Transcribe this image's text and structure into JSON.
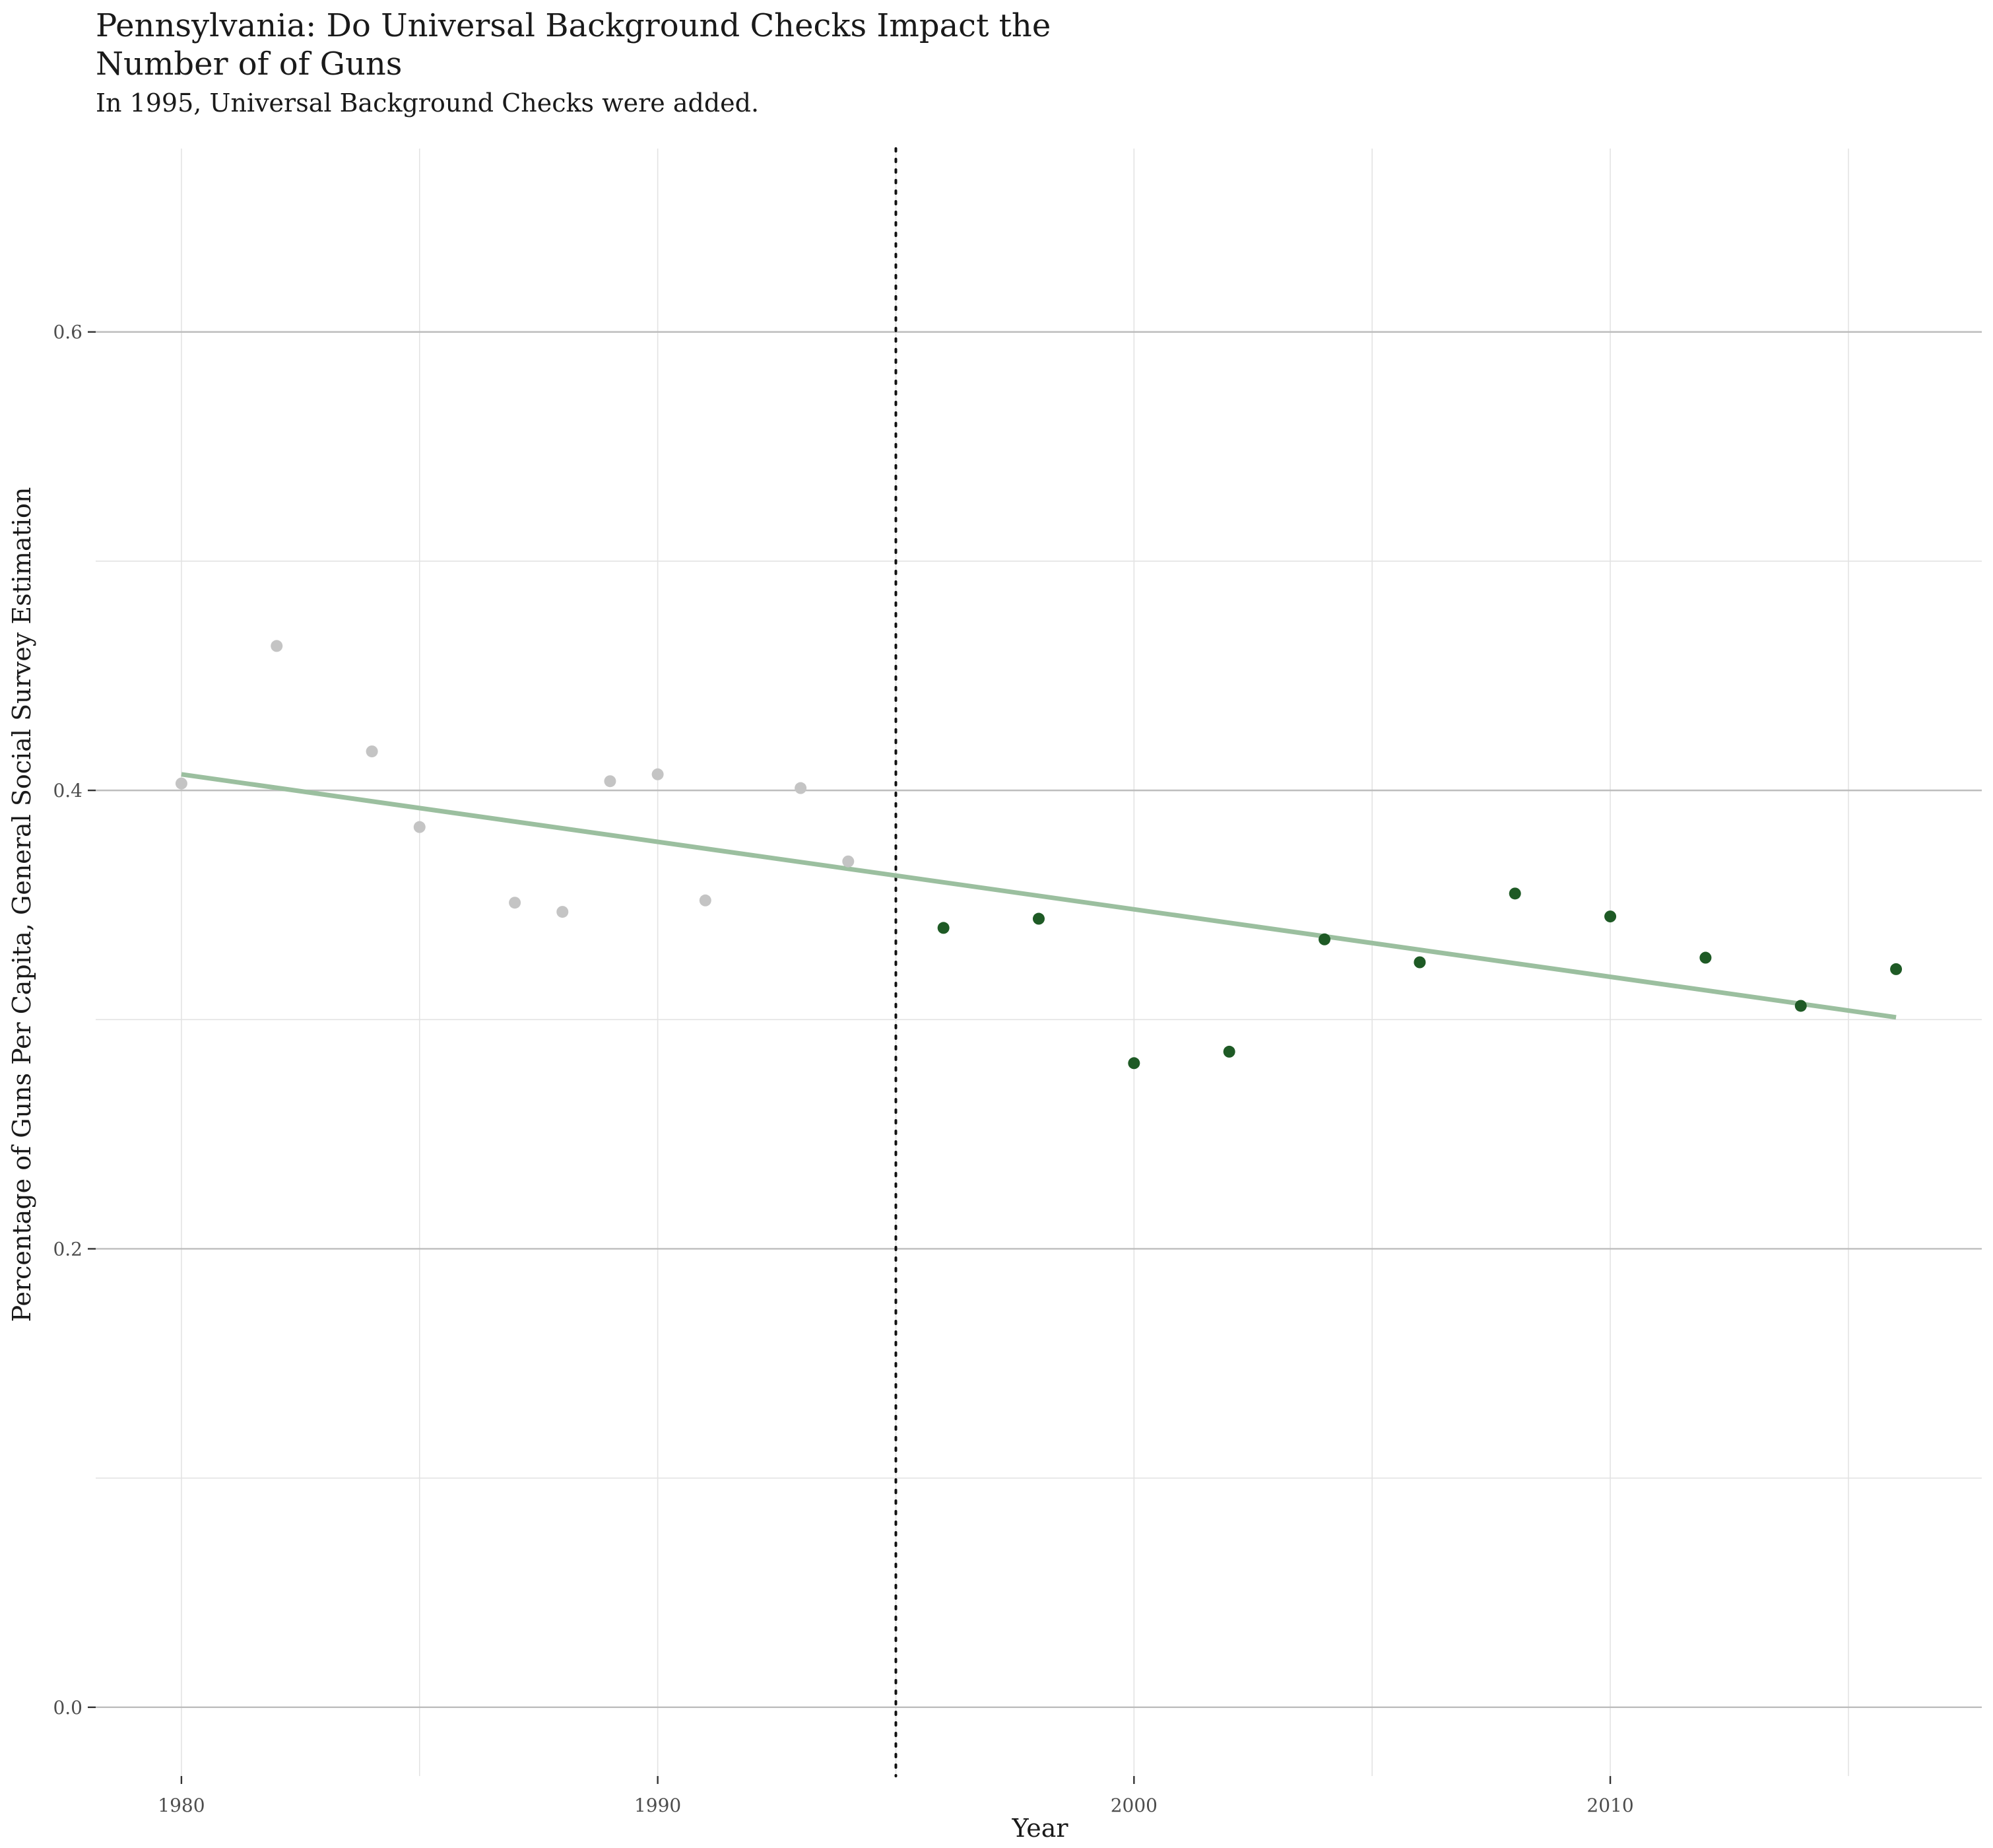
{
  "chart_data": {
    "type": "scatter",
    "title": "Pennsylvania: Do Universal Background Checks Impact the\n Number of of Guns",
    "subtitle": "In 1995, Universal Background Checks were added.",
    "xlabel": "Year",
    "ylabel": "Percentage of Guns Per Capita, General Social Survey Estimation",
    "xlim": [
      1978.2,
      2017.8
    ],
    "ylim": [
      -0.03,
      0.68
    ],
    "x_ticks": [
      1980,
      1990,
      2000,
      2010
    ],
    "x_tick_labels": [
      "1980",
      "1990",
      "2000",
      "2010"
    ],
    "y_ticks": [
      0.0,
      0.2,
      0.4,
      0.6
    ],
    "y_tick_labels": [
      "0.0",
      "0.2",
      "0.4",
      "0.6"
    ],
    "y_minor_ticks": [
      0.1,
      0.3,
      0.5
    ],
    "grid": true,
    "legend": "none",
    "vline": {
      "x": 1995,
      "style": "dotted"
    },
    "series": [
      {
        "color": "#c4c4c4",
        "points": [
          [
            1980,
            0.403
          ],
          [
            1982,
            0.463
          ],
          [
            1984,
            0.417
          ],
          [
            1985,
            0.384
          ],
          [
            1987,
            0.351
          ],
          [
            1988,
            0.347
          ],
          [
            1989,
            0.404
          ],
          [
            1990,
            0.407
          ],
          [
            1991,
            0.352
          ],
          [
            1993,
            0.401
          ],
          [
            1994,
            0.369
          ]
        ]
      },
      {
        "color": "#1e5a25",
        "points": [
          [
            1996,
            0.34
          ],
          [
            1998,
            0.344
          ],
          [
            2000,
            0.281
          ],
          [
            2002,
            0.286
          ],
          [
            2004,
            0.335
          ],
          [
            2006,
            0.325
          ],
          [
            2008,
            0.355
          ],
          [
            2010,
            0.345
          ],
          [
            2012,
            0.327
          ],
          [
            2014,
            0.306
          ],
          [
            2016,
            0.322
          ]
        ]
      }
    ],
    "trend_line": {
      "color": "#9bbf9f",
      "x": [
        1980,
        2016
      ],
      "y": [
        0.407,
        0.301
      ]
    }
  }
}
